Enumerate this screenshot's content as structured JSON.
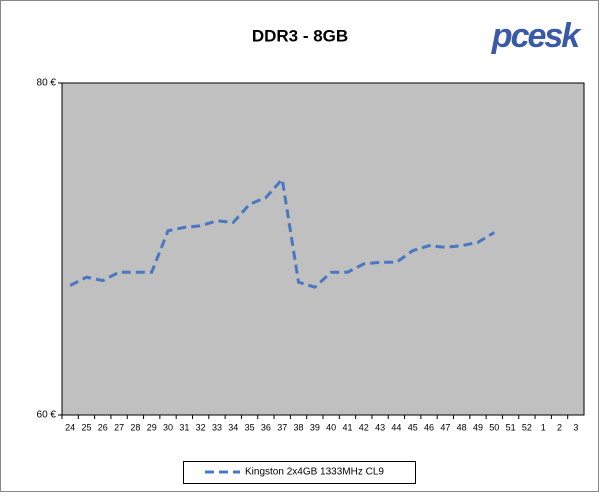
{
  "chart_data": {
    "type": "line",
    "title": "DDR3 - 8GB",
    "logo": "pcesk",
    "categories": [
      "24",
      "25",
      "26",
      "27",
      "28",
      "29",
      "30",
      "31",
      "32",
      "33",
      "34",
      "35",
      "36",
      "37",
      "38",
      "39",
      "40",
      "41",
      "42",
      "43",
      "44",
      "45",
      "46",
      "47",
      "48",
      "49",
      "50",
      "51",
      "52",
      "1",
      "2",
      "3"
    ],
    "series": [
      {
        "name": "Kingston 2x4GB 1333MHz CL9",
        "color": "#4a78c0",
        "values": [
          67.8,
          68.3,
          68.1,
          68.6,
          68.6,
          68.6,
          71.1,
          71.3,
          71.4,
          71.7,
          71.6,
          72.7,
          73.1,
          74.2,
          68.0,
          67.7,
          68.6,
          68.6,
          69.1,
          69.2,
          69.2,
          69.9,
          70.2,
          70.1,
          70.2,
          70.4,
          71.0,
          null,
          null,
          null,
          null,
          null
        ]
      }
    ],
    "ylim": [
      60,
      80
    ],
    "yticks": [
      {
        "value": 60,
        "label": "60 €"
      },
      {
        "value": 80,
        "label": "80 €"
      }
    ],
    "plot_color": "#c0c0c0",
    "grid": false
  }
}
